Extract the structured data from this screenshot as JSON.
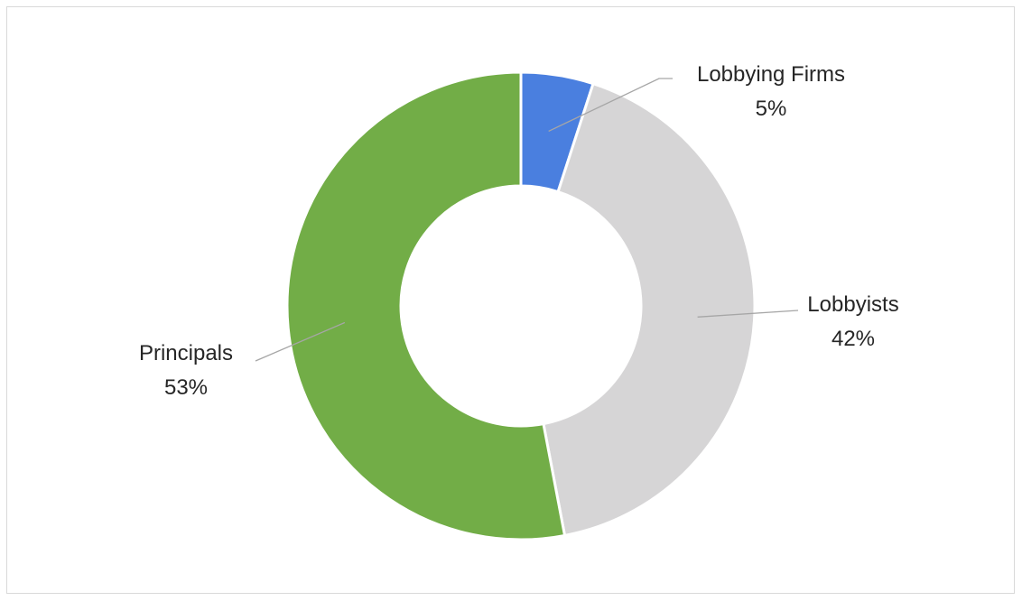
{
  "chart_data": {
    "type": "pie",
    "variant": "donut",
    "title": "",
    "slices": [
      {
        "label": "Lobbying Firms",
        "value": 5,
        "value_label": "5%",
        "color": "#4a7fdf"
      },
      {
        "label": "Lobbyists",
        "value": 42,
        "value_label": "42%",
        "color": "#d6d5d6"
      },
      {
        "label": "Principals",
        "value": 53,
        "value_label": "53%",
        "color": "#72ad47"
      }
    ],
    "legend": "none",
    "leader_line_color": "#a6a6a6",
    "slice_separator_color": "#ffffff"
  }
}
